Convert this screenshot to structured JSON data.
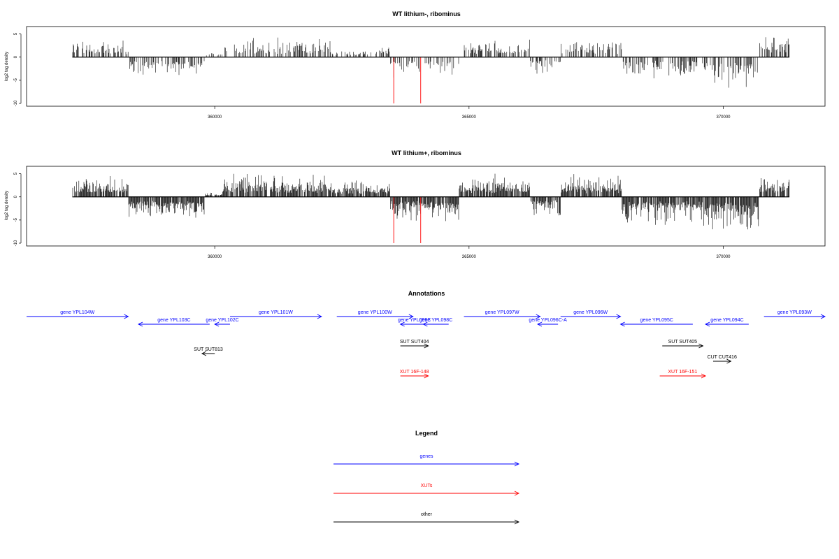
{
  "chart_data": [
    {
      "type": "bar",
      "title": "WT lithium-, ribominus",
      "ylabel": "log2 tag density",
      "xlim": [
        356300,
        372000
      ],
      "ylim": [
        -10,
        6
      ],
      "yticks": [
        5,
        0,
        -5,
        -10
      ],
      "xticks": [
        360000,
        365000,
        370000
      ],
      "data_range": [
        357200,
        371300
      ],
      "highlight_x": [
        363520,
        364050
      ],
      "highlight_color": "#ff0000",
      "profile": [
        {
          "start": 357200,
          "end": 358300,
          "value": 2.5
        },
        {
          "start": 358300,
          "end": 359800,
          "value": -2.6
        },
        {
          "start": 359800,
          "end": 360150,
          "value": 0.6
        },
        {
          "start": 360150,
          "end": 362300,
          "value": 2.7
        },
        {
          "start": 362300,
          "end": 363200,
          "value": 1.2
        },
        {
          "start": 363200,
          "end": 363450,
          "value": 1.8
        },
        {
          "start": 363450,
          "end": 364800,
          "value": -2.8
        },
        {
          "start": 364800,
          "end": 366200,
          "value": 2.6
        },
        {
          "start": 366200,
          "end": 366800,
          "value": -2.4
        },
        {
          "start": 366800,
          "end": 368000,
          "value": 2.6
        },
        {
          "start": 368000,
          "end": 369600,
          "value": -3.0
        },
        {
          "start": 369600,
          "end": 370700,
          "value": -4.2
        },
        {
          "start": 370700,
          "end": 371300,
          "value": 3.5
        }
      ],
      "density": 0.45
    },
    {
      "type": "bar",
      "title": "WT lithium+, ribominus",
      "ylabel": "log2 tag density",
      "xlim": [
        356300,
        372000
      ],
      "ylim": [
        -10,
        6
      ],
      "yticks": [
        5,
        0,
        -5,
        -10
      ],
      "xticks": [
        360000,
        365000,
        370000
      ],
      "data_range": [
        357200,
        371300
      ],
      "highlight_x": [
        363520,
        364050
      ],
      "highlight_color": "#ff0000",
      "profile": [
        {
          "start": 357200,
          "end": 358300,
          "value": 2.8
        },
        {
          "start": 358300,
          "end": 359800,
          "value": -3.2
        },
        {
          "start": 359800,
          "end": 360150,
          "value": 0.8
        },
        {
          "start": 360150,
          "end": 362300,
          "value": 3.3
        },
        {
          "start": 362300,
          "end": 363200,
          "value": 2.2
        },
        {
          "start": 363200,
          "end": 363450,
          "value": 2.2
        },
        {
          "start": 363450,
          "end": 364800,
          "value": -3.4
        },
        {
          "start": 364800,
          "end": 366200,
          "value": 3.0
        },
        {
          "start": 366200,
          "end": 366800,
          "value": -2.8
        },
        {
          "start": 366800,
          "end": 368000,
          "value": 3.0
        },
        {
          "start": 368000,
          "end": 369600,
          "value": -3.6
        },
        {
          "start": 369600,
          "end": 370700,
          "value": -4.6
        },
        {
          "start": 370700,
          "end": 371300,
          "value": 3.3
        }
      ],
      "density": 0.85
    }
  ],
  "annotations": {
    "title": "Annotations",
    "features": [
      {
        "label": "gene YPL104W",
        "start": 356300,
        "end": 358300,
        "strand": "+",
        "row": 0,
        "color": "#0000ff"
      },
      {
        "label": "gene YPL103C",
        "start": 358500,
        "end": 359900,
        "strand": "-",
        "row": 1,
        "color": "#0000ff"
      },
      {
        "label": "gene YPL102C",
        "start": 360000,
        "end": 360300,
        "strand": "-",
        "row": 1,
        "color": "#0000ff"
      },
      {
        "label": "gene YPL101W",
        "start": 360300,
        "end": 362100,
        "strand": "+",
        "row": 0,
        "color": "#0000ff"
      },
      {
        "label": "gene YPL100W",
        "start": 362400,
        "end": 363900,
        "strand": "+",
        "row": 0,
        "color": "#0000ff"
      },
      {
        "label": "gene YPL099C",
        "start": 363650,
        "end": 364200,
        "strand": "-",
        "row": 1,
        "color": "#0000ff"
      },
      {
        "label": "gene YPL098C",
        "start": 364100,
        "end": 364600,
        "strand": "-",
        "row": 1,
        "color": "#0000ff"
      },
      {
        "label": "gene YPL097W",
        "start": 364900,
        "end": 366400,
        "strand": "+",
        "row": 0,
        "color": "#0000ff"
      },
      {
        "label": "gene YPL096C-A",
        "start": 366350,
        "end": 366750,
        "strand": "-",
        "row": 1,
        "color": "#0000ff"
      },
      {
        "label": "gene YPL096W",
        "start": 366800,
        "end": 367980,
        "strand": "+",
        "row": 0,
        "color": "#0000ff"
      },
      {
        "label": "gene YPL095C",
        "start": 367980,
        "end": 369400,
        "strand": "-",
        "row": 1,
        "color": "#0000ff"
      },
      {
        "label": "gene YPL094C",
        "start": 369650,
        "end": 370500,
        "strand": "-",
        "row": 1,
        "color": "#0000ff"
      },
      {
        "label": "gene YPL093W",
        "start": 370800,
        "end": 372000,
        "strand": "+",
        "row": 0,
        "color": "#0000ff"
      },
      {
        "label": "SUT SUT813",
        "start": 359750,
        "end": 360000,
        "strand": "-",
        "row": 4,
        "color": "#000000"
      },
      {
        "label": "SUT SUT404",
        "start": 363650,
        "end": 364200,
        "strand": "+",
        "row": 3,
        "color": "#000000"
      },
      {
        "label": "SUT SUT405",
        "start": 368800,
        "end": 369600,
        "strand": "+",
        "row": 3,
        "color": "#000000"
      },
      {
        "label": "CUT CUT416",
        "start": 369800,
        "end": 370150,
        "strand": "+",
        "row": 5,
        "color": "#000000"
      },
      {
        "label": "XUT 16F-148",
        "start": 363650,
        "end": 364200,
        "strand": "+",
        "row": 6,
        "color": "#ff0000"
      },
      {
        "label": "XUT 16F-151",
        "start": 368750,
        "end": 369650,
        "strand": "+",
        "row": 6,
        "color": "#ff0000"
      }
    ]
  },
  "legend": {
    "title": "Legend",
    "items": [
      {
        "label": "genes",
        "color": "#0000ff"
      },
      {
        "label": "XUTs",
        "color": "#ff0000"
      },
      {
        "label": "other",
        "color": "#000000"
      }
    ]
  }
}
